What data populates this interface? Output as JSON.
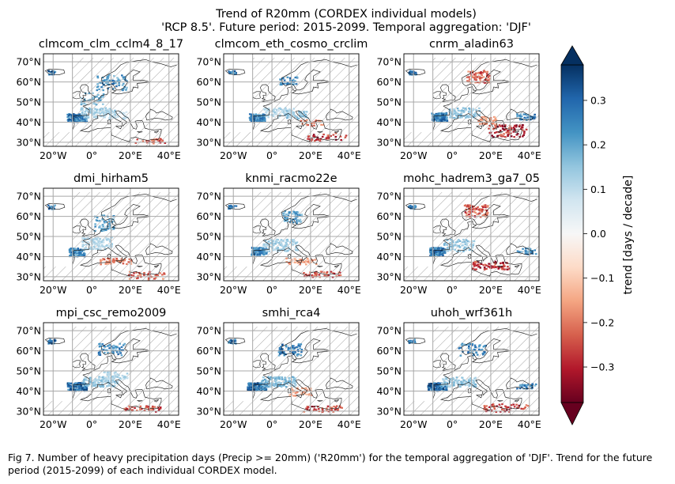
{
  "figure": {
    "title_line1": "Trend of R20mm (CORDEX individual models)",
    "title_line2": "'RCP 8.5'. Future period: 2015-2099. Temporal aggregation: 'DJF'",
    "caption": "Fig 7. Number of heavy precipitation days (Precip >= 20mm) ('R20mm') for the temporal aggregation of 'DJF'. Trend for the future period (2015-2099) of each individual CORDEX model."
  },
  "chart_data": {
    "type": "heatmap",
    "map_extent": {
      "lon": [
        -25,
        45
      ],
      "lat": [
        28,
        74
      ]
    },
    "x_ticks": [
      {
        "value": -20,
        "label": "20°W"
      },
      {
        "value": 0,
        "label": "0°"
      },
      {
        "value": 20,
        "label": "20°E"
      },
      {
        "value": 40,
        "label": "40°E"
      }
    ],
    "y_ticks": [
      {
        "value": 30,
        "label": "30°N"
      },
      {
        "value": 40,
        "label": "40°N"
      },
      {
        "value": 50,
        "label": "50°N"
      },
      {
        "value": 60,
        "label": "60°N"
      },
      {
        "value": 70,
        "label": "70°N"
      }
    ],
    "grid": true,
    "hatching": "non-significant areas",
    "panels": [
      {
        "title": "clmcom_clm_cclm4_8_17"
      },
      {
        "title": "clmcom_eth_cosmo_crclim"
      },
      {
        "title": "cnrm_aladin63"
      },
      {
        "title": "dmi_hirham5"
      },
      {
        "title": "knmi_racmo22e"
      },
      {
        "title": "mohc_hadrem3_ga7_05"
      },
      {
        "title": "mpi_csc_remo2009"
      },
      {
        "title": "smhi_rca4"
      },
      {
        "title": "uhoh_wrf361h"
      }
    ],
    "colorbar": {
      "label": "trend [days / decade]",
      "range": [
        -0.38,
        0.38
      ],
      "extend": "both",
      "colormap": "RdBu",
      "ticks": [
        {
          "value": 0.3,
          "label": "0.3"
        },
        {
          "value": 0.2,
          "label": "0.2"
        },
        {
          "value": 0.1,
          "label": "0.1"
        },
        {
          "value": 0.0,
          "label": "0.0"
        },
        {
          "value": -0.1,
          "label": "−0.1"
        },
        {
          "value": -0.2,
          "label": "−0.2"
        },
        {
          "value": -0.3,
          "label": "−0.3"
        }
      ],
      "colors": [
        "#67001f",
        "#b2182b",
        "#d6604d",
        "#f4a582",
        "#fddbc7",
        "#f7f7f7",
        "#d1e5f0",
        "#92c5de",
        "#4393c3",
        "#2166ac",
        "#053061"
      ]
    }
  }
}
